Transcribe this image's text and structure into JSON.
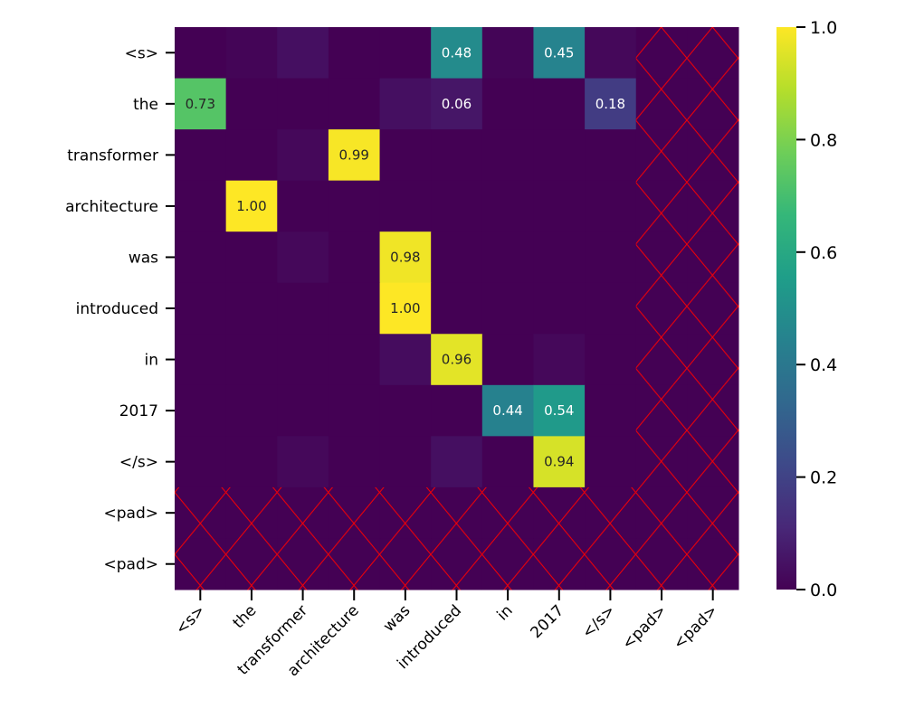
{
  "chart_data": {
    "type": "heatmap",
    "colormap": "viridis",
    "x_labels": [
      "<s>",
      "the",
      "transformer",
      "architecture",
      "was",
      "introduced",
      "in",
      "2017",
      "</s>",
      "<pad>",
      "<pad>"
    ],
    "y_labels": [
      "<s>",
      "the",
      "transformer",
      "architecture",
      "was",
      "introduced",
      "in",
      "2017",
      "</s>",
      "<pad>",
      "<pad>"
    ],
    "values": [
      [
        0.0,
        0.01,
        0.04,
        0.0,
        0.0,
        0.48,
        0.01,
        0.45,
        0.02,
        null,
        null
      ],
      [
        0.73,
        0.0,
        0.0,
        0.0,
        0.04,
        0.06,
        0.0,
        0.0,
        0.18,
        null,
        null
      ],
      [
        0.0,
        0.0,
        0.02,
        0.99,
        0.0,
        0.0,
        0.0,
        0.0,
        0.0,
        null,
        null
      ],
      [
        0.0,
        1.0,
        0.0,
        0.0,
        0.0,
        0.0,
        0.0,
        0.0,
        0.0,
        null,
        null
      ],
      [
        0.0,
        0.0,
        0.02,
        0.0,
        0.98,
        0.0,
        0.0,
        0.0,
        0.0,
        null,
        null
      ],
      [
        0.0,
        0.0,
        0.0,
        0.0,
        1.0,
        0.0,
        0.0,
        0.0,
        0.0,
        null,
        null
      ],
      [
        0.0,
        0.0,
        0.0,
        0.0,
        0.03,
        0.96,
        0.0,
        0.02,
        0.0,
        null,
        null
      ],
      [
        0.0,
        0.0,
        0.0,
        0.0,
        0.0,
        0.0,
        0.44,
        0.54,
        0.0,
        null,
        null
      ],
      [
        0.0,
        0.0,
        0.02,
        0.0,
        0.0,
        0.04,
        0.0,
        0.94,
        0.0,
        null,
        null
      ],
      [
        null,
        null,
        null,
        null,
        null,
        null,
        null,
        null,
        null,
        null,
        null
      ],
      [
        null,
        null,
        null,
        null,
        null,
        null,
        null,
        null,
        null,
        null,
        null
      ]
    ],
    "annotations": [
      [
        "",
        "",
        "",
        "",
        "",
        "0.48",
        "",
        "0.45",
        "",
        "",
        ""
      ],
      [
        "0.73",
        "",
        "",
        "",
        "",
        "0.06",
        "",
        "",
        "0.18",
        "",
        ""
      ],
      [
        "",
        "",
        "",
        "0.99",
        "",
        "",
        "",
        "",
        "",
        "",
        ""
      ],
      [
        "",
        "1.00",
        "",
        "",
        "",
        "",
        "",
        "",
        "",
        "",
        ""
      ],
      [
        "",
        "",
        "",
        "",
        "0.98",
        "",
        "",
        "",
        "",
        "",
        ""
      ],
      [
        "",
        "",
        "",
        "",
        "1.00",
        "",
        "",
        "",
        "",
        "",
        ""
      ],
      [
        "",
        "",
        "",
        "",
        "",
        "0.96",
        "",
        "",
        "",
        "",
        ""
      ],
      [
        "",
        "",
        "",
        "",
        "",
        "",
        "0.44",
        "0.54",
        "",
        "",
        ""
      ],
      [
        "",
        "",
        "",
        "",
        "",
        "",
        "",
        "0.94",
        "",
        "",
        ""
      ],
      [
        "",
        "",
        "",
        "",
        "",
        "",
        "",
        "",
        "",
        "",
        ""
      ],
      [
        "",
        "",
        "",
        "",
        "",
        "",
        "",
        "",
        "",
        "",
        ""
      ]
    ],
    "masked_hatch_color": "#ff0000",
    "colorbar": {
      "range": [
        0.0,
        1.0
      ],
      "ticks": [
        "0.0",
        "0.2",
        "0.4",
        "0.6",
        "0.8",
        "1.0"
      ]
    },
    "title": "",
    "xlabel": "",
    "ylabel": ""
  }
}
